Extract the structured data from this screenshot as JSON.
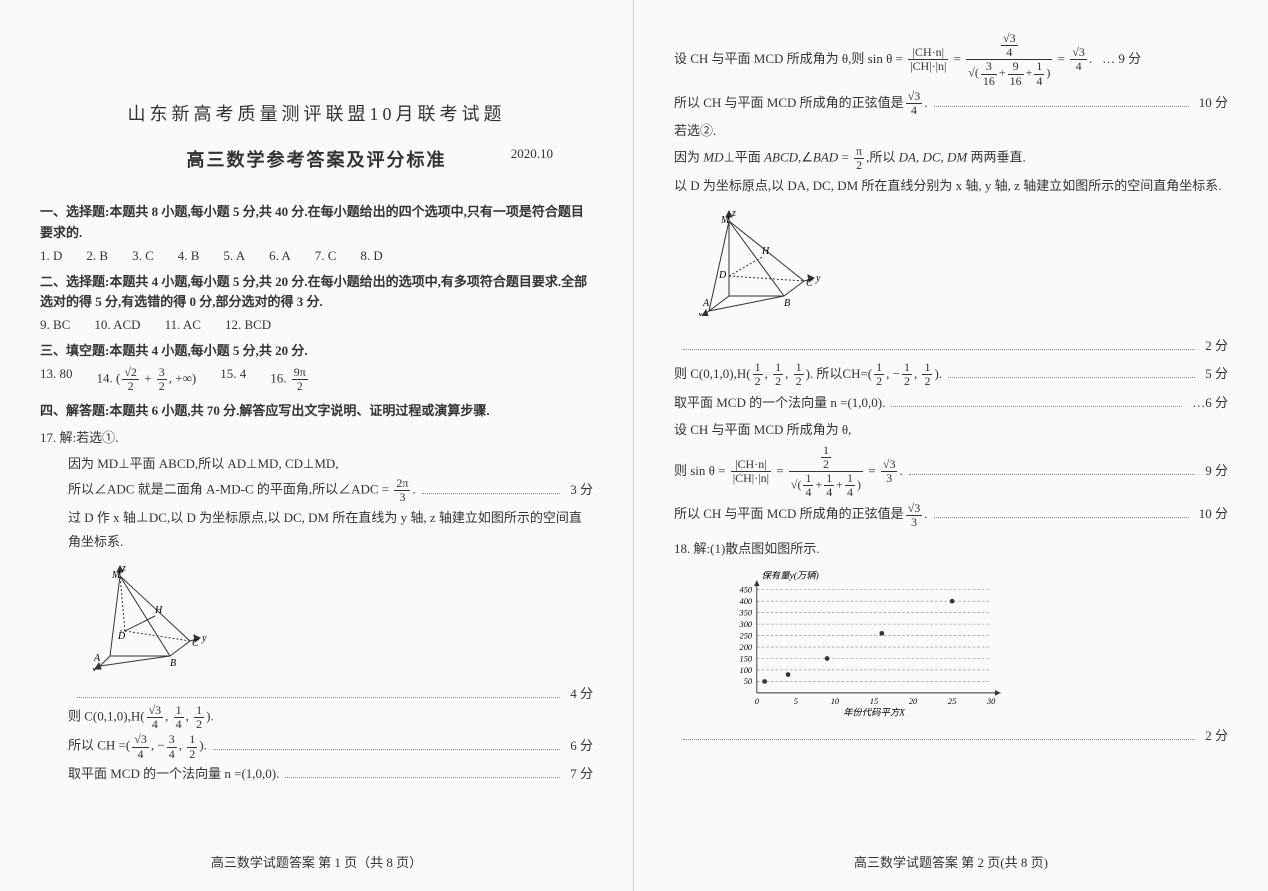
{
  "title_main": "山东新高考质量测评联盟10月联考试题",
  "title_sub": "高三数学参考答案及评分标准",
  "date": "2020.10",
  "sec1_head": "一、选择题:本题共 8 小题,每小题 5 分,共 40 分.在每小题给出的四个选项中,只有一项是符合题目要求的.",
  "sec1_answers": [
    "1. D",
    "2. B",
    "3. C",
    "4. B",
    "5. A",
    "6. A",
    "7. C",
    "8. D"
  ],
  "sec2_head": "二、选择题:本题共 4 小题,每小题 5 分,共 20 分.在每小题给出的选项中,有多项符合题目要求.全部选对的得 5 分,有选错的得 0 分,部分选对的得 3 分.",
  "sec2_answers": [
    "9. BC",
    "10. ACD",
    "11. AC",
    "12. BCD"
  ],
  "sec3_head": "三、填空题:本题共 4 小题,每小题 5 分,共 20 分.",
  "q13": "13. 80",
  "q14_pre": "14. ",
  "q15": "15. 4",
  "q16_pre": "16. ",
  "sec4_head": "四、解答题:本题共 6 小题,共 70 分.解答应写出文字说明、证明过程或演算步骤.",
  "q17_line1": "17. 解:若选①.",
  "q17_line2": "因为 MD⊥平面 ABCD,所以 AD⊥MD, CD⊥MD,",
  "q17_line3_a": "所以∠ADC 就是二面角 A‑MD‑C 的平面角,所以∠ADC = ",
  "q17_line3_pts": "3 分",
  "q17_line4": "过 D 作 x 轴⊥DC,以 D 为坐标原点,以 DC, DM 所在直线为 y 轴, z 轴建立如图所示的空间直角坐标系.",
  "q17_pts4": "4 分",
  "q17_line5_a": "则 C(0,1,0),H",
  "q17_line6_a": "所以 CH =",
  "q17_pts6": "6 分",
  "q17_line7": "取平面 MCD 的一个法向量 n =(1,0,0).",
  "q17_pts7": "7 分",
  "r_line1_a": "设 CH 与平面 MCD 所成角为 θ,则 sin θ = ",
  "r_pts9": "… 9 分",
  "r_line2": "所以 CH 与平面 MCD 所成角的正弦值是",
  "r_pts10": "10 分",
  "r_line3": "若选②.",
  "r_line4": "因为 MD⊥平面 ABCD,∠BAD = π/2,所以 DA, DC, DM 两两垂直.",
  "r_line5": "以 D 为坐标原点,以 DA, DC, DM 所在直线分别为 x 轴, y 轴, z 轴建立如图所示的空间直角坐标系.",
  "r_pts2": "2 分",
  "r_line6_a": "则 C(0,1,0),H",
  "r_pts5": "5 分",
  "r_line7": "取平面 MCD 的一个法向量 n =(1,0,0).",
  "r_pts6b": "…6 分",
  "r_line8": "设 CH 与平面 MCD 所成角为 θ,",
  "r_line9_a": "则 sin θ = ",
  "r_pts9b": "9 分",
  "r_line10": "所以 CH 与平面 MCD 所成角的正弦值是",
  "r_pts10b": "10 分",
  "q18_line1": "18. 解:(1)散点图如图所示.",
  "r_pts2b": "2 分",
  "scatter": {
    "ylabel": "保有量y(万辆)",
    "xlabel": "年份代码平方X",
    "y_ticks": [
      50,
      100,
      150,
      200,
      250,
      300,
      350,
      400,
      450
    ],
    "x_ticks": [
      0,
      5,
      10,
      15,
      20,
      25,
      30
    ],
    "points": [
      [
        1,
        50
      ],
      [
        4,
        80
      ],
      [
        9,
        150
      ],
      [
        16,
        260
      ],
      [
        25,
        400
      ]
    ]
  },
  "footer_left": "高三数学试题答案 第 1 页（共 8 页）",
  "footer_right": "高三数学试题答案 第 2 页(共 8 页)",
  "colors": {
    "text": "#333333",
    "bg": "#fafafa",
    "grid": "#888888"
  }
}
